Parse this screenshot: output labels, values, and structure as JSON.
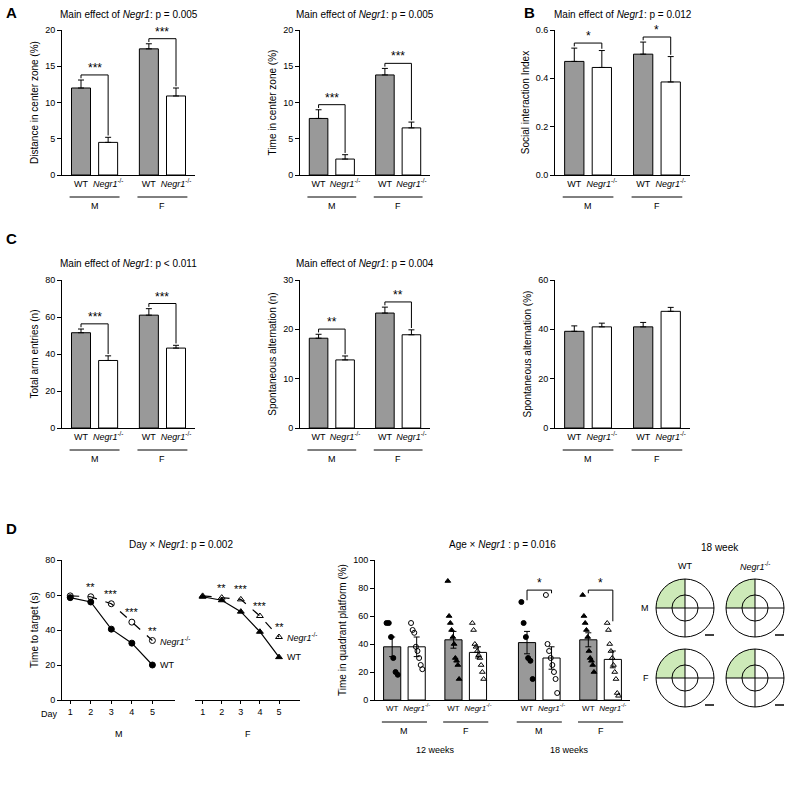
{
  "panel_labels": [
    "A",
    "B",
    "C",
    "D"
  ],
  "chart_data": [
    {
      "type": "bar",
      "title": "Main effect of Negr1: p = 0.005",
      "y_label": "Distance in center zone (%)",
      "categories": [
        "WT",
        "Negr1-/-",
        "WT",
        "Negr1-/-"
      ],
      "groups": [
        "M",
        "M",
        "F",
        "F"
      ],
      "values": [
        12.0,
        4.5,
        17.4,
        10.9
      ],
      "errors": [
        1.1,
        0.7,
        0.7,
        1.1
      ],
      "colors": [
        "#999999",
        "#ffffff",
        "#999999",
        "#ffffff"
      ],
      "ylim": [
        0,
        20
      ],
      "yticks": [
        0,
        5,
        10,
        15,
        20
      ],
      "comparisons": [
        {
          "group": "M",
          "label": "***"
        },
        {
          "group": "F",
          "label": "***"
        }
      ]
    },
    {
      "type": "bar",
      "title": "Main effect of Negr1: p = 0.005",
      "y_label": "Time in center zone (%)",
      "categories": [
        "WT",
        "Negr1-/-",
        "WT",
        "Negr1-/-"
      ],
      "groups": [
        "M",
        "M",
        "F",
        "F"
      ],
      "values": [
        7.8,
        2.2,
        13.8,
        6.5
      ],
      "errors": [
        1.2,
        0.6,
        0.9,
        0.8
      ],
      "colors": [
        "#999999",
        "#ffffff",
        "#999999",
        "#ffffff"
      ],
      "ylim": [
        0,
        20
      ],
      "yticks": [
        0,
        5,
        10,
        15,
        20
      ],
      "comparisons": [
        {
          "group": "M",
          "label": "***"
        },
        {
          "group": "F",
          "label": "***"
        }
      ]
    },
    {
      "type": "bar",
      "title": "Main effect of Negr1: p = 0.012",
      "y_label": "Social interaction Index",
      "categories": [
        "WT",
        "Negr1-/-",
        "WT",
        "Negr1-/-"
      ],
      "groups": [
        "M",
        "M",
        "F",
        "F"
      ],
      "values": [
        0.47,
        0.445,
        0.5,
        0.385
      ],
      "errors": [
        0.055,
        0.07,
        0.05,
        0.105
      ],
      "colors": [
        "#999999",
        "#ffffff",
        "#999999",
        "#ffffff"
      ],
      "ylim": [
        0,
        0.6
      ],
      "yticks": [
        {
          "value": 0,
          "label": "0.0"
        },
        0.2,
        0.4,
        0.6
      ],
      "comparisons": [
        {
          "group": "M",
          "label": "*"
        },
        {
          "group": "F",
          "label": "*"
        }
      ]
    },
    {
      "type": "bar",
      "title": "Main effect of Negr1: p < 0.011",
      "y_label": "Total arm entries (n)",
      "categories": [
        "WT",
        "Negr1-/-",
        "WT",
        "Negr1-/-"
      ],
      "groups": [
        "M",
        "M",
        "F",
        "F"
      ],
      "values": [
        51.5,
        36.5,
        61.0,
        43.2
      ],
      "errors": [
        2.0,
        2.5,
        3.5,
        1.5
      ],
      "colors": [
        "#999999",
        "#ffffff",
        "#999999",
        "#ffffff"
      ],
      "ylim": [
        0,
        80
      ],
      "yticks": [
        0,
        20,
        40,
        60,
        80
      ],
      "comparisons": [
        {
          "group": "M",
          "label": "***"
        },
        {
          "group": "F",
          "label": "***"
        }
      ]
    },
    {
      "type": "bar",
      "title": "Main effect of Negr1: p = 0.004",
      "y_label": "Spontaneous alternation (n)",
      "categories": [
        "WT",
        "Negr1-/-",
        "WT",
        "Negr1-/-"
      ],
      "groups": [
        "M",
        "M",
        "F",
        "F"
      ],
      "values": [
        18.2,
        13.8,
        23.3,
        18.9
      ],
      "errors": [
        0.8,
        0.8,
        1.2,
        1.0
      ],
      "colors": [
        "#999999",
        "#ffffff",
        "#999999",
        "#ffffff"
      ],
      "ylim": [
        0,
        30
      ],
      "yticks": [
        0,
        10,
        20,
        30
      ],
      "comparisons": [
        {
          "group": "M",
          "label": "**"
        },
        {
          "group": "F",
          "label": "**"
        }
      ]
    },
    {
      "type": "bar",
      "y_label": "Spontaneous alternation (%)",
      "categories": [
        "WT",
        "Negr1-/-",
        "WT",
        "Negr1-/-"
      ],
      "groups": [
        "M",
        "M",
        "F",
        "F"
      ],
      "values": [
        39.2,
        41.0,
        41.0,
        47.3
      ],
      "errors": [
        2.2,
        1.5,
        1.8,
        1.6
      ],
      "colors": [
        "#999999",
        "#ffffff",
        "#999999",
        "#ffffff"
      ],
      "ylim": [
        0,
        60
      ],
      "yticks": [
        0,
        20,
        40,
        60
      ]
    },
    {
      "type": "line",
      "title": "Day × Negr1: p = 0.002",
      "x_label": "Day",
      "y_label": "Time to target (s)",
      "xlim": [
        0.6,
        6.1
      ],
      "xticks": [
        1,
        2,
        3,
        4,
        5
      ],
      "ylim": [
        0,
        80
      ],
      "yticks": [
        0,
        20,
        40,
        60,
        80
      ],
      "panels": [
        {
          "group": "M",
          "x": [
            1,
            2,
            3,
            4,
            5
          ],
          "series": [
            {
              "name": "WT",
              "color": "#000000",
              "marker": "circle",
              "line_style": "solid",
              "values": [
                58.5,
                56.0,
                40.5,
                32.5,
                20.0
              ]
            },
            {
              "name": "Negr1-/-",
              "color": "#000000",
              "marker": "circle-open",
              "line_style": "dash",
              "values": [
                59.5,
                59.0,
                55.0,
                44.5,
                34.0
              ]
            }
          ],
          "annotations": [
            {
              "x": 2,
              "label": "**"
            },
            {
              "x": 3,
              "label": "***"
            },
            {
              "x": 4,
              "label": "***"
            },
            {
              "x": 5,
              "label": "**"
            }
          ]
        },
        {
          "group": "F",
          "x": [
            1,
            2,
            3,
            4,
            5
          ],
          "series": [
            {
              "name": "WT",
              "color": "#000000",
              "marker": "triangle-up",
              "line_style": "solid",
              "values": [
                59.0,
                57.0,
                50.5,
                39.0,
                24.5
              ]
            },
            {
              "name": "Negr1-/-",
              "color": "#000000",
              "marker": "triangle-up-open",
              "line_style": "dash",
              "values": [
                59.5,
                58.5,
                57.5,
                48.0,
                36.0
              ]
            }
          ],
          "annotations": [
            {
              "x": 2,
              "label": "**"
            },
            {
              "x": 3,
              "label": "***"
            },
            {
              "x": 4,
              "label": "***"
            },
            {
              "x": 5,
              "label": "**"
            }
          ]
        }
      ]
    },
    {
      "type": "bar",
      "title": "Age × Negr1 : p = 0.016",
      "y_label": "Time in quadrant platform (%)",
      "categories": [
        "WT",
        "Negr1-/-",
        "WT",
        "Negr1-/-",
        "WT",
        "Negr1-/-",
        "WT",
        "Negr1-/-"
      ],
      "groups": [
        "M",
        "M",
        "F",
        "F",
        "M",
        "M",
        "F",
        "F"
      ],
      "subgroups": [
        "12 weeks",
        "12 weeks",
        "12 weeks",
        "12 weeks",
        "18 weeks",
        "18 weeks",
        "18 weeks",
        "18 weeks"
      ],
      "values": [
        38,
        38,
        43,
        34,
        41,
        30,
        43,
        29
      ],
      "errors": [
        7,
        7,
        6,
        4,
        8,
        8,
        5,
        6
      ],
      "points": [
        [
          55,
          55,
          45,
          30,
          20,
          18
        ],
        [
          55,
          50,
          48,
          38,
          35,
          30,
          25,
          22
        ],
        [
          85,
          60,
          55,
          50,
          45,
          40,
          30,
          28,
          25,
          15
        ],
        [
          55,
          50,
          40,
          38,
          35,
          32,
          30,
          25,
          20,
          15
        ],
        [
          70,
          55,
          45,
          30,
          28,
          15
        ],
        [
          75,
          40,
          35,
          30,
          25,
          20,
          15,
          5
        ],
        [
          75,
          60,
          55,
          50,
          45,
          35,
          30,
          28,
          25,
          20
        ],
        [
          55,
          50,
          40,
          35,
          30,
          25,
          20,
          15,
          5,
          3
        ]
      ],
      "markers": [
        "circle",
        "circle-open",
        "triangle-up",
        "triangle-up-open",
        "circle",
        "circle-open",
        "triangle-up",
        "triangle-up-open"
      ],
      "colors": [
        "#999999",
        "#ffffff",
        "#999999",
        "#ffffff",
        "#999999",
        "#ffffff",
        "#999999",
        "#ffffff"
      ],
      "ylim": [
        0,
        100
      ],
      "yticks": [
        0,
        20,
        40,
        60,
        80,
        100
      ],
      "comparisons": [
        {
          "group": "M",
          "subgroup": "18 weeks",
          "label": "*"
        },
        {
          "group": "F",
          "subgroup": "18 weeks",
          "label": "*"
        }
      ]
    }
  ],
  "diagram": {
    "title": "18 week",
    "columns": [
      "WT",
      "Negr1-/-"
    ],
    "rows": [
      "M",
      "F"
    ]
  }
}
